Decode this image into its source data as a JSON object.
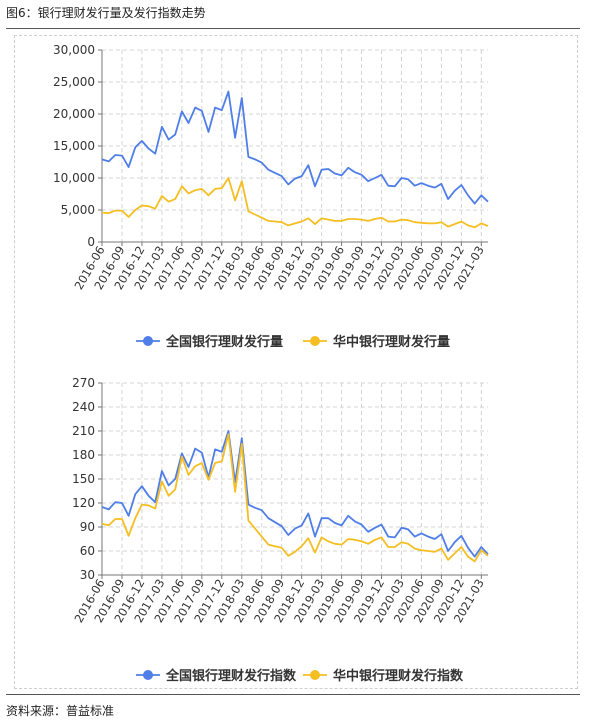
{
  "header": {
    "title": "图6：银行理财发行量及发行指数走势"
  },
  "footer": {
    "source": "资料来源：普益标准"
  },
  "colors": {
    "national": "#4f7ee8",
    "central": "#f5be22",
    "axis": "#777777",
    "grid": "#d4d4d4"
  },
  "chart_data": [
    {
      "type": "line",
      "x": [
        "2016-06",
        "2016-07",
        "2016-08",
        "2016-09",
        "2016-10",
        "2016-11",
        "2016-12",
        "2017-01",
        "2017-02",
        "2017-03",
        "2017-04",
        "2017-05",
        "2017-06",
        "2017-07",
        "2017-08",
        "2017-09",
        "2017-10",
        "2017-11",
        "2017-12",
        "2018-01",
        "2018-02",
        "2018-03",
        "2018-04",
        "2018-05",
        "2018-06",
        "2018-07",
        "2018-08",
        "2018-09",
        "2018-10",
        "2018-11",
        "2018-12",
        "2019-01",
        "2019-02",
        "2019-03",
        "2019-04",
        "2019-05",
        "2019-06",
        "2019-07",
        "2019-08",
        "2019-09",
        "2019-10",
        "2019-11",
        "2019-12",
        "2020-01",
        "2020-02",
        "2020-03",
        "2020-04",
        "2020-05",
        "2020-06",
        "2020-07",
        "2020-08",
        "2020-09",
        "2020-10",
        "2020-11",
        "2020-12",
        "2021-01",
        "2021-02",
        "2021-03",
        "2021-04"
      ],
      "x_tick_labels": [
        "2016-06",
        "2016-09",
        "2016-12",
        "2017-03",
        "2017-06",
        "2017-09",
        "2017-12",
        "2018-03",
        "2018-06",
        "2018-09",
        "2018-12",
        "2019-03",
        "2019-06",
        "2019-09",
        "2019-12",
        "2020-03",
        "2020-06",
        "2020-09",
        "2020-12",
        "2021-03"
      ],
      "y_ticks": [
        "0",
        "5,000",
        "10,000",
        "15,000",
        "20,000",
        "25,000",
        "30,000"
      ],
      "ylim": [
        0,
        30000
      ],
      "grid": true,
      "legend_position": "bottom",
      "series": [
        {
          "name": "全国银行理财发行量",
          "values": [
            12900,
            12600,
            13600,
            13500,
            11700,
            14800,
            15800,
            14600,
            13800,
            18000,
            16000,
            16800,
            20400,
            18600,
            21000,
            20500,
            17200,
            21000,
            20600,
            23500,
            16300,
            22500,
            13300,
            12900,
            12400,
            11300,
            10800,
            10300,
            9000,
            9900,
            10300,
            12000,
            8700,
            11300,
            11400,
            10700,
            10400,
            11600,
            10900,
            10500,
            9500,
            10000,
            10500,
            8800,
            8700,
            10000,
            9800,
            8800,
            9200,
            8800,
            8500,
            9100,
            6700,
            8000,
            8900,
            7300,
            6000,
            7300,
            6300
          ]
        },
        {
          "name": "华中银行理财发行量",
          "values": [
            4600,
            4500,
            4900,
            4900,
            3900,
            5000,
            5700,
            5600,
            5200,
            7200,
            6300,
            6700,
            8700,
            7600,
            8100,
            8300,
            7300,
            8300,
            8400,
            10000,
            6500,
            9500,
            4800,
            4300,
            3800,
            3300,
            3200,
            3100,
            2600,
            2900,
            3200,
            3700,
            2800,
            3700,
            3500,
            3300,
            3300,
            3600,
            3600,
            3500,
            3300,
            3600,
            3800,
            3200,
            3200,
            3500,
            3400,
            3100,
            3000,
            2900,
            2900,
            3100,
            2400,
            2800,
            3200,
            2600,
            2300,
            2900,
            2500
          ]
        }
      ]
    },
    {
      "type": "line",
      "x": [
        "2016-06",
        "2016-07",
        "2016-08",
        "2016-09",
        "2016-10",
        "2016-11",
        "2016-12",
        "2017-01",
        "2017-02",
        "2017-03",
        "2017-04",
        "2017-05",
        "2017-06",
        "2017-07",
        "2017-08",
        "2017-09",
        "2017-10",
        "2017-11",
        "2017-12",
        "2018-01",
        "2018-02",
        "2018-03",
        "2018-04",
        "2018-05",
        "2018-06",
        "2018-07",
        "2018-08",
        "2018-09",
        "2018-10",
        "2018-11",
        "2018-12",
        "2019-01",
        "2019-02",
        "2019-03",
        "2019-04",
        "2019-05",
        "2019-06",
        "2019-07",
        "2019-08",
        "2019-09",
        "2019-10",
        "2019-11",
        "2019-12",
        "2020-01",
        "2020-02",
        "2020-03",
        "2020-04",
        "2020-05",
        "2020-06",
        "2020-07",
        "2020-08",
        "2020-09",
        "2020-10",
        "2020-11",
        "2020-12",
        "2021-01",
        "2021-02",
        "2021-03",
        "2021-04"
      ],
      "x_tick_labels": [
        "2016-06",
        "2016-09",
        "2016-12",
        "2017-03",
        "2017-06",
        "2017-09",
        "2017-12",
        "2018-03",
        "2018-06",
        "2018-09",
        "2018-12",
        "2019-03",
        "2019-06",
        "2019-09",
        "2019-12",
        "2020-03",
        "2020-06",
        "2020-09",
        "2020-12",
        "2021-03"
      ],
      "y_ticks": [
        "30",
        "60",
        "90",
        "120",
        "150",
        "180",
        "210",
        "240",
        "270"
      ],
      "ylim": [
        30,
        270
      ],
      "grid": true,
      "legend_position": "bottom",
      "series": [
        {
          "name": "全国银行理财发行指数",
          "values": [
            115,
            112,
            121,
            120,
            104,
            131,
            141,
            129,
            121,
            160,
            142,
            150,
            182,
            165,
            188,
            183,
            152,
            187,
            184,
            210,
            146,
            201,
            118,
            114,
            111,
            101,
            96,
            91,
            80,
            88,
            92,
            107,
            78,
            101,
            101,
            95,
            92,
            104,
            97,
            93,
            84,
            89,
            93,
            78,
            77,
            89,
            87,
            78,
            82,
            78,
            75,
            81,
            60,
            71,
            79,
            64,
            53,
            65,
            56
          ]
        },
        {
          "name": "华中银行理财发行指数",
          "values": [
            94,
            92,
            100,
            100,
            79,
            101,
            118,
            117,
            113,
            147,
            129,
            137,
            178,
            155,
            166,
            170,
            149,
            170,
            172,
            206,
            134,
            194,
            98,
            88,
            78,
            68,
            66,
            64,
            54,
            59,
            66,
            76,
            58,
            77,
            72,
            69,
            68,
            75,
            74,
            72,
            69,
            74,
            77,
            65,
            65,
            71,
            69,
            63,
            61,
            60,
            59,
            63,
            49,
            57,
            65,
            53,
            47,
            61,
            54
          ]
        }
      ]
    }
  ]
}
